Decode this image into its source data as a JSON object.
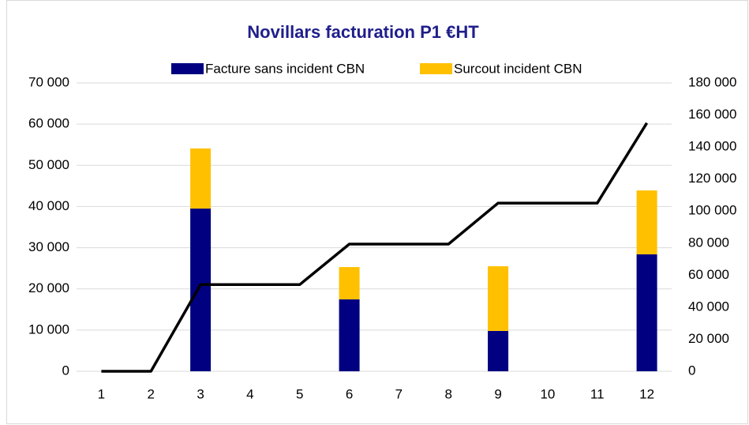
{
  "chart_data": {
    "type": "bar",
    "title": "Novillars facturation P1 €HT",
    "categories": [
      "1",
      "2",
      "3",
      "4",
      "5",
      "6",
      "7",
      "8",
      "9",
      "10",
      "11",
      "12"
    ],
    "stacked": true,
    "series": [
      {
        "name": "Facture sans incident CBN",
        "color": "#000080",
        "values": [
          0,
          0,
          39500,
          0,
          0,
          17450,
          0,
          0,
          9800,
          0,
          0,
          28400
        ]
      },
      {
        "name": "Surcout incident CBN",
        "color": "#ffc000",
        "values": [
          0,
          0,
          14600,
          0,
          0,
          7850,
          0,
          0,
          15700,
          0,
          0,
          15500
        ]
      },
      {
        "type": "line",
        "axis": "y2",
        "color": "#000000",
        "values": [
          0,
          0,
          54100,
          54100,
          54100,
          79400,
          79400,
          79400,
          105000,
          105000,
          105000,
          155000
        ]
      }
    ],
    "ylim": [
      0,
      70000
    ],
    "yticks": [
      0,
      {
        "value": 10000,
        "label": "10 000"
      },
      {
        "value": 20000,
        "label": "20 000"
      },
      {
        "value": 30000,
        "label": "30 000"
      },
      {
        "value": 40000,
        "label": "40 000"
      },
      {
        "value": 50000,
        "label": "50 000"
      },
      {
        "value": 60000,
        "label": "60 000"
      },
      {
        "value": 70000,
        "label": "70 000"
      }
    ],
    "y2lim": [
      0,
      180000
    ],
    "y2ticks": [
      0,
      {
        "value": 20000,
        "label": "20 000"
      },
      {
        "value": 40000,
        "label": "40 000"
      },
      {
        "value": 60000,
        "label": "60 000"
      },
      {
        "value": 80000,
        "label": "80 000"
      },
      {
        "value": 100000,
        "label": "100 000"
      },
      {
        "value": 120000,
        "label": "120 000"
      },
      {
        "value": 140000,
        "label": "140 000"
      },
      {
        "value": 160000,
        "label": "160 000"
      },
      {
        "value": 180000,
        "label": "180 000"
      }
    ],
    "grid": true,
    "legend": "top"
  }
}
